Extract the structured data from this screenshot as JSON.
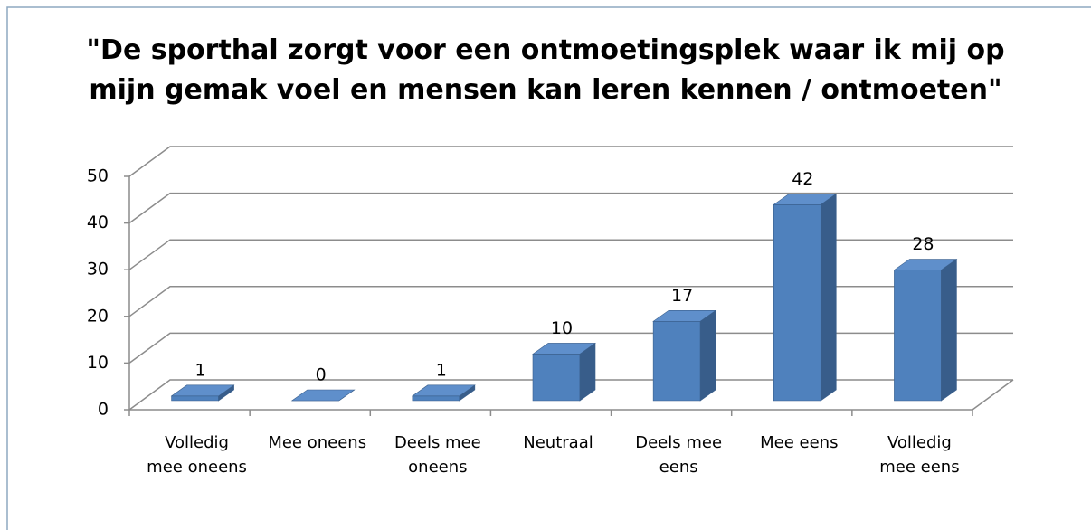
{
  "chart_data": {
    "type": "bar3d",
    "title": "\"De sporthal zorgt voor een ontmoetingsplek waar ik mij op mijn gemak voel en mensen kan leren kennen / ontmoeten\"",
    "categories": [
      "Volledig mee oneens",
      "Mee oneens",
      "Deels mee oneens",
      "Neutraal",
      "Deels mee eens",
      "Mee eens",
      "Volledig mee eens"
    ],
    "values": [
      1,
      0,
      1,
      10,
      17,
      42,
      28
    ],
    "color": "#4f81bd",
    "ylim": [
      0,
      50
    ],
    "yticks": [
      0,
      10,
      20,
      30,
      40,
      50
    ],
    "grid": true
  }
}
